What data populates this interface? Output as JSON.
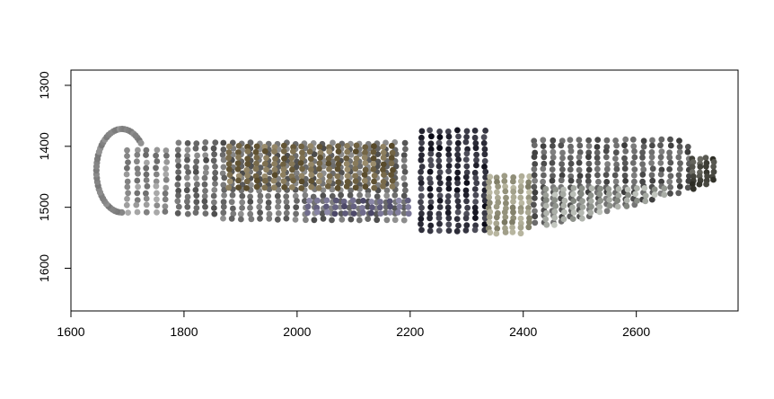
{
  "chart_data": {
    "type": "scatter",
    "title": "",
    "xlabel": "",
    "ylabel": "",
    "xlim": [
      1600,
      2780
    ],
    "ylim": [
      1275,
      1670
    ],
    "y_inverted": true,
    "x_ticks": [
      1600,
      1800,
      2000,
      2200,
      2400,
      2600
    ],
    "y_ticks": [
      1300,
      1400,
      1500,
      1600
    ],
    "x_tick_labels": [
      "1600",
      "1800",
      "2000",
      "2200",
      "2400",
      "2600"
    ],
    "y_tick_labels": [
      "1300",
      "1400",
      "1500",
      "1600"
    ],
    "grid": false,
    "legend": "none",
    "note": "Dense grid of colored points forming an elongated spindle shape spanning x≈1645–2740, y≈1365–1545; colors vary (grey, olive, brown, dark navy, pale).",
    "groups": [
      {
        "name": "left-cap",
        "kind": "ring",
        "cx": 1690,
        "cy": 1440,
        "rx": 50,
        "ry": 72,
        "color": "#858585"
      },
      {
        "name": "left-fill",
        "kind": "grid",
        "x_range": [
          1700,
          1780
        ],
        "y_range": [
          1385,
          1520
        ],
        "step": 17,
        "color": "#8c8c8c"
      },
      {
        "name": "body-grey",
        "kind": "grid",
        "x_range": [
          1790,
          2200
        ],
        "y_range": [
          1395,
          1520
        ],
        "step": 16,
        "color": "#6e6e6e"
      },
      {
        "name": "body-olive",
        "kind": "grid",
        "x_range": [
          1880,
          2180
        ],
        "y_range": [
          1400,
          1470
        ],
        "step": 16,
        "color": "#7a6c4c"
      },
      {
        "name": "body-violet",
        "kind": "grid",
        "x_range": [
          2020,
          2200
        ],
        "y_range": [
          1490,
          1515
        ],
        "step": 16,
        "color": "#6e6a8a"
      },
      {
        "name": "center-dark",
        "kind": "grid",
        "x_range": [
          2220,
          2340
        ],
        "y_range": [
          1375,
          1545
        ],
        "step": 16,
        "color": "#2e2e3a"
      },
      {
        "name": "center-pale",
        "kind": "grid",
        "x_range": [
          2340,
          2420
        ],
        "y_range": [
          1450,
          1545
        ],
        "step": 14,
        "color": "#9e9c86"
      },
      {
        "name": "right-body",
        "kind": "grid",
        "x_range": [
          2420,
          2700
        ],
        "y_range": [
          1390,
          1530
        ],
        "step": 16,
        "color": "#5e5e5e"
      },
      {
        "name": "right-pale",
        "kind": "grid",
        "x_range": [
          2440,
          2660
        ],
        "y_range": [
          1470,
          1530
        ],
        "step": 16,
        "color": "#a3a7a0"
      },
      {
        "name": "right-tip",
        "kind": "grid",
        "x_range": [
          2700,
          2740
        ],
        "y_range": [
          1420,
          1475
        ],
        "step": 12,
        "color": "#4e4e46"
      }
    ]
  }
}
